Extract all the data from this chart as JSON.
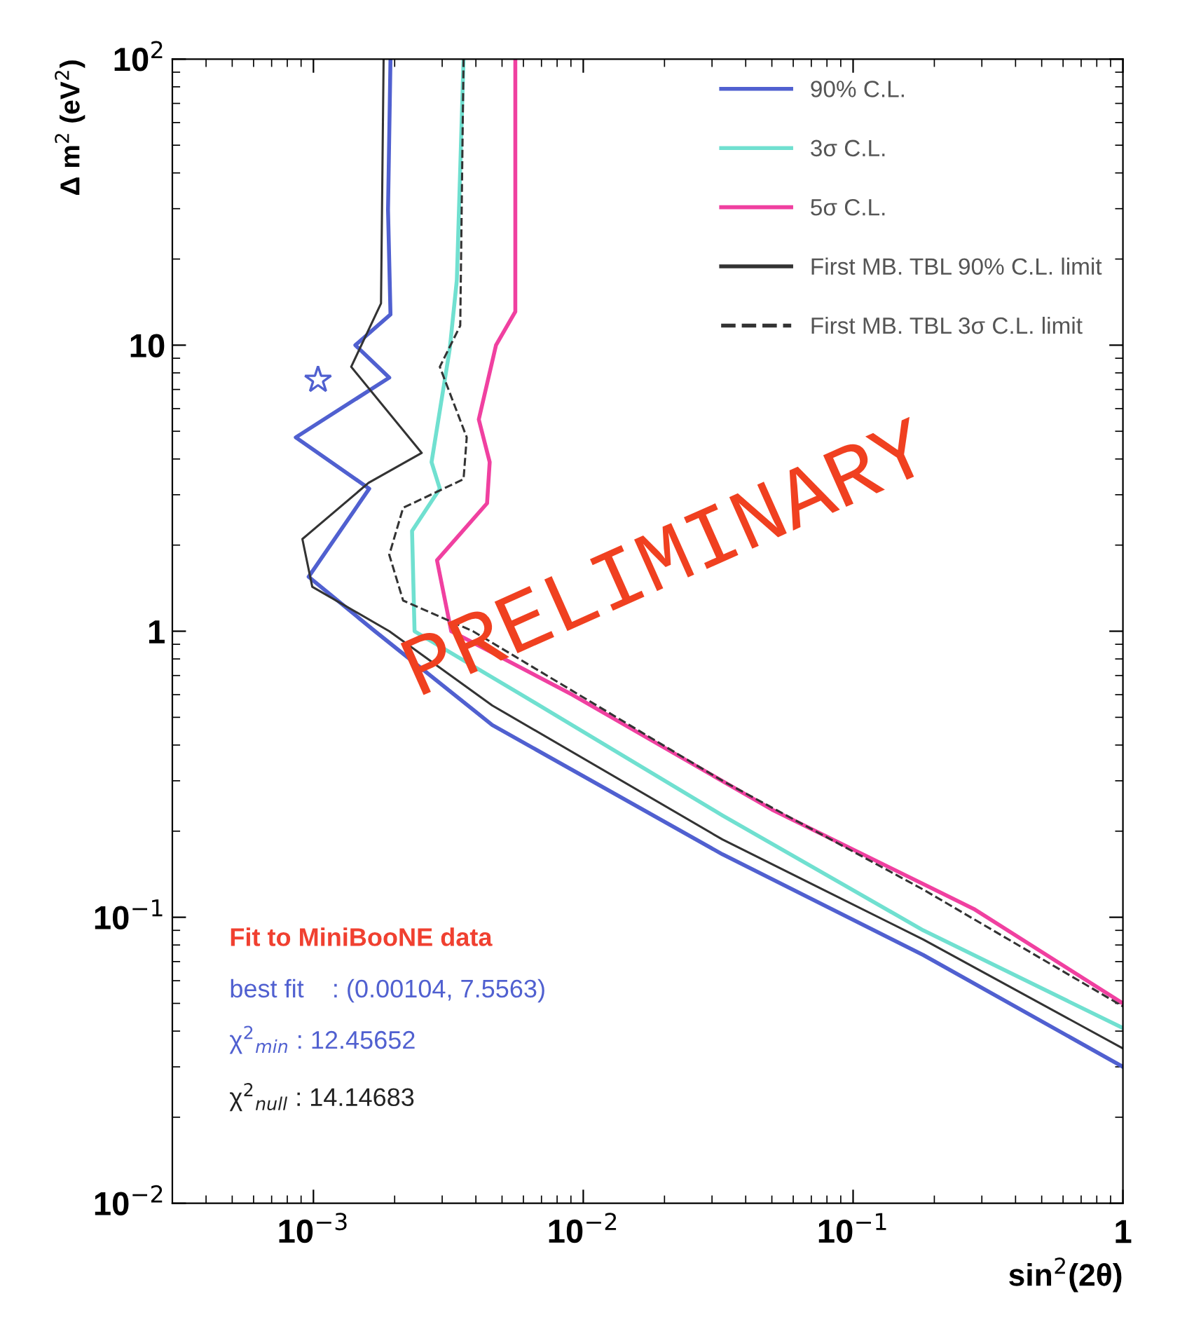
{
  "chart_data": {
    "type": "line",
    "xlabel": "sin$^{2}$(2θ)",
    "ylabel": "Δ m$^{2}$ (eV$^{2}$)",
    "log": "xy",
    "xlim": [
      0.0003,
      1
    ],
    "ylim": [
      0.01,
      100
    ],
    "xticks": [
      {
        "value": 0.001,
        "label": "10$^{−3}$"
      },
      {
        "value": 0.01,
        "label": "10$^{−2}$"
      },
      {
        "value": 0.1,
        "label": "10$^{−1}$"
      },
      1
    ],
    "yticks": [
      {
        "value": 0.01,
        "label": "10$^{−2}$"
      },
      {
        "value": 0.1,
        "label": "10$^{−1}$"
      },
      1,
      10,
      {
        "value": 100,
        "label": "10$^{2}$"
      }
    ],
    "grid": false,
    "legend": "top right",
    "series": [
      {
        "name": "90% C.L.",
        "color": "#5060d0",
        "line_style": "solid",
        "x": [
          0.00193,
          0.00189,
          0.00193,
          0.00143,
          0.00191,
          0.00086,
          0.00161,
          0.00096,
          0.00169,
          0.0046,
          0.0328,
          0.182,
          1
        ],
        "values": [
          100,
          29.7,
          12.8,
          10,
          7.7,
          4.76,
          3.15,
          1.55,
          1.0,
          0.47,
          0.166,
          0.0738,
          0.03
        ]
      },
      {
        "name": "3σ C.L.",
        "color": "#70e0d0",
        "line_style": "solid",
        "x": [
          0.0036,
          0.0034,
          0.0032,
          0.00274,
          0.00294,
          0.00232,
          0.00237,
          0.0059,
          0.0328,
          0.182,
          1
        ],
        "values": [
          100,
          16.9,
          9.7,
          3.9,
          3.15,
          2.24,
          1.0,
          0.6,
          0.227,
          0.09,
          0.041
        ]
      },
      {
        "name": "5σ C.L.",
        "color": "#f040a0",
        "line_style": "solid",
        "x": [
          0.0056,
          0.0056,
          0.00475,
          0.0041,
          0.0045,
          0.0044,
          0.00287,
          0.00324,
          0.0091,
          0.05,
          0.28,
          1
        ],
        "values": [
          100,
          13.1,
          10,
          5.5,
          3.9,
          2.8,
          1.77,
          1.0,
          0.6,
          0.238,
          0.107,
          0.05
        ]
      },
      {
        "name": "First MB. TBL 90% C.L. limit",
        "color": "#333333",
        "line_style": "solid",
        "x": [
          0.00182,
          0.00178,
          0.00138,
          0.00252,
          0.0016,
          0.00091,
          0.00099,
          0.00191,
          0.0046,
          0.0328,
          0.182,
          1
        ],
        "values": [
          100,
          14,
          8.4,
          4.2,
          3.3,
          2.1,
          1.43,
          1.0,
          0.55,
          0.187,
          0.0836,
          0.0348
        ]
      },
      {
        "name": "First MB. TBL 3σ C.L. limit",
        "color": "#333333",
        "line_style": "dashed",
        "x": [
          0.0036,
          0.0035,
          0.00294,
          0.0037,
          0.0036,
          0.00215,
          0.00191,
          0.00215,
          0.0039,
          0.0328,
          0.182,
          1
        ],
        "values": [
          100,
          11.7,
          8.4,
          4.76,
          3.4,
          2.7,
          1.85,
          1.28,
          1.0,
          0.3,
          0.125,
          0.0488
        ]
      },
      {
        "type": "scatter",
        "marker": "star",
        "color": "#5060d0",
        "x": [
          0.00104
        ],
        "values": [
          7.5563
        ]
      }
    ],
    "annotations": [
      "PRELIMINARY",
      "Fit to MiniBooNE data",
      "best fit    : (0.00104, 7.5563)",
      "χ$^{2}$$_{min}$ : 12.45652",
      "χ$^{2}$$_{null}$ : 14.14683"
    ]
  }
}
